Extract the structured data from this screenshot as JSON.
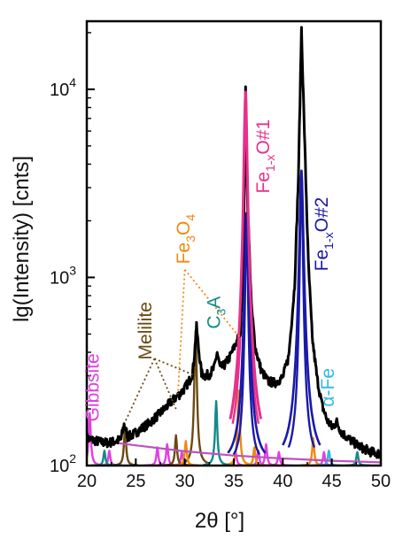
{
  "chart_data": {
    "type": "line",
    "title": "",
    "xlabel": "2θ [°]",
    "ylabel": "lg(Intensity) [cnts]",
    "xlim": [
      20,
      50
    ],
    "ylim": [
      100,
      23000
    ],
    "y_scale": "log",
    "grid": false,
    "x_ticks": [
      20,
      25,
      30,
      35,
      40,
      45,
      50
    ],
    "y_ticks": [
      {
        "value": 100,
        "label": "10",
        "exp": "2"
      },
      {
        "value": 1000,
        "label": "10",
        "exp": "3"
      },
      {
        "value": 10000,
        "label": "10",
        "exp": "4"
      }
    ],
    "colors": {
      "measured": "#000000",
      "Gibbsite": "#e040e0",
      "Melilite": "#6b4a12",
      "Fe3O4": "#ee8a10",
      "C3A": "#138a8a",
      "Fe1-xO#1": "#e8308c",
      "Fe1-xO#2": "#1a1aa8",
      "alpha-Fe": "#30b8e8",
      "background": "#c050c0"
    },
    "series": [
      {
        "name": "measured",
        "points": [
          [
            20,
            140
          ],
          [
            20.5,
            137
          ],
          [
            21,
            135
          ],
          [
            21.5,
            133
          ],
          [
            22,
            132
          ],
          [
            22.5,
            133
          ],
          [
            23,
            135
          ],
          [
            23.5,
            138
          ],
          [
            23.8,
            165
          ],
          [
            24.2,
            142
          ],
          [
            24.7,
            146
          ],
          [
            25,
            150
          ],
          [
            25.5,
            156
          ],
          [
            26,
            163
          ],
          [
            26.5,
            170
          ],
          [
            27,
            180
          ],
          [
            27.5,
            190
          ],
          [
            28,
            202
          ],
          [
            28.5,
            215
          ],
          [
            29,
            228
          ],
          [
            29.5,
            240
          ],
          [
            30,
            258
          ],
          [
            30.5,
            285
          ],
          [
            30.8,
            310
          ],
          [
            31,
            400
          ],
          [
            31.2,
            545
          ],
          [
            31.4,
            420
          ],
          [
            31.7,
            310
          ],
          [
            32,
            300
          ],
          [
            32.5,
            305
          ],
          [
            33,
            330
          ],
          [
            33.3,
            400
          ],
          [
            33.6,
            330
          ],
          [
            34,
            340
          ],
          [
            34.5,
            370
          ],
          [
            35,
            420
          ],
          [
            35.4,
            470
          ],
          [
            35.7,
            520
          ],
          [
            36,
            1500
          ],
          [
            36.2,
            9800
          ],
          [
            36.4,
            2500
          ],
          [
            36.8,
            700
          ],
          [
            37.2,
            420
          ],
          [
            37.8,
            320
          ],
          [
            38.5,
            280
          ],
          [
            39.2,
            275
          ],
          [
            40,
            295
          ],
          [
            40.6,
            380
          ],
          [
            41.2,
            900
          ],
          [
            41.6,
            3500
          ],
          [
            41.9,
            21000
          ],
          [
            42.2,
            6000
          ],
          [
            42.6,
            1200
          ],
          [
            43,
            480
          ],
          [
            43.5,
            290
          ],
          [
            44,
            210
          ],
          [
            44.5,
            175
          ],
          [
            45,
            160
          ],
          [
            45.5,
            170
          ],
          [
            46,
            150
          ],
          [
            47,
            135
          ],
          [
            48,
            125
          ],
          [
            49,
            118
          ],
          [
            50,
            115
          ]
        ]
      },
      {
        "name": "Gibbsite",
        "peaks": [
          [
            20.3,
            190
          ],
          [
            22.3,
            120
          ],
          [
            27.2,
            125
          ],
          [
            28.2,
            130
          ],
          [
            29.7,
            118
          ],
          [
            35.2,
            118
          ],
          [
            37.5,
            120
          ],
          [
            38.3,
            130
          ],
          [
            39.6,
            118
          ],
          [
            44.2,
            118
          ]
        ]
      },
      {
        "name": "Melilite",
        "peaks": [
          [
            23.9,
            160
          ],
          [
            29.1,
            145
          ],
          [
            31.1,
            520
          ]
        ]
      },
      {
        "name": "Fe3O4",
        "peaks": [
          [
            30.1,
            135
          ],
          [
            35.5,
            250
          ],
          [
            37.1,
            125
          ],
          [
            43.1,
            140
          ]
        ]
      },
      {
        "name": "C3A",
        "peaks": [
          [
            21.8,
            120
          ],
          [
            33.2,
            220
          ],
          [
            47.6,
            118
          ]
        ]
      },
      {
        "name": "Fe1-xO#1",
        "peaks": [
          [
            36.2,
            9800
          ]
        ]
      },
      {
        "name": "Fe1-xO#2",
        "peaks": [
          [
            36.3,
            2200
          ],
          [
            41.9,
            3700
          ]
        ]
      },
      {
        "name": "alpha-Fe",
        "peaks": [
          [
            44.7,
            120
          ]
        ]
      },
      {
        "name": "background",
        "points": [
          [
            20,
            138
          ],
          [
            25,
            128
          ],
          [
            30,
            119
          ],
          [
            35,
            113
          ],
          [
            40,
            109
          ],
          [
            45,
            106
          ],
          [
            50,
            104
          ]
        ]
      }
    ],
    "annotations": [
      {
        "text": "Gibbsite",
        "series": "Gibbsite",
        "x": 21.2,
        "y": 260,
        "rotate": -90
      },
      {
        "text": "Melilite",
        "series": "Melilite",
        "x": 26.6,
        "y": 520,
        "rotate": -90
      },
      {
        "text": "Fe",
        "sub": "3",
        "tail": "O",
        "sub2": "4",
        "series": "Fe3O4",
        "x": 30.5,
        "y": 1600,
        "rotate": -90
      },
      {
        "text": "C",
        "sub": "3",
        "tail": "A",
        "series": "C3A",
        "x": 33.6,
        "y": 650,
        "rotate": -90
      },
      {
        "text": "Fe",
        "sub": "1-x",
        "tail": "O#1",
        "series": "Fe1-xO#1",
        "x": 38.6,
        "y": 4400,
        "rotate": -90
      },
      {
        "text": "Fe",
        "sub": "1-x",
        "tail": "O#2",
        "series": "Fe1-xO#2",
        "x": 44.6,
        "y": 1700,
        "rotate": -90
      },
      {
        "text": "α-Fe",
        "series": "alpha-Fe",
        "x": 45.2,
        "y": 260,
        "rotate": -90
      }
    ],
    "leader_lines": [
      {
        "series": "Melilite",
        "from": [
          26.9,
          370
        ],
        "to": [
          23.9,
          170
        ]
      },
      {
        "series": "Melilite",
        "from": [
          26.9,
          370
        ],
        "to": [
          29.1,
          200
        ]
      },
      {
        "series": "Melilite",
        "from": [
          26.9,
          370
        ],
        "to": [
          31.1,
          300
        ]
      },
      {
        "series": "Fe3O4",
        "from": [
          30.0,
          1100
        ],
        "to": [
          29.3,
          240
        ]
      },
      {
        "series": "Fe3O4",
        "from": [
          30.0,
          1100
        ],
        "to": [
          35.6,
          480
        ]
      }
    ]
  }
}
